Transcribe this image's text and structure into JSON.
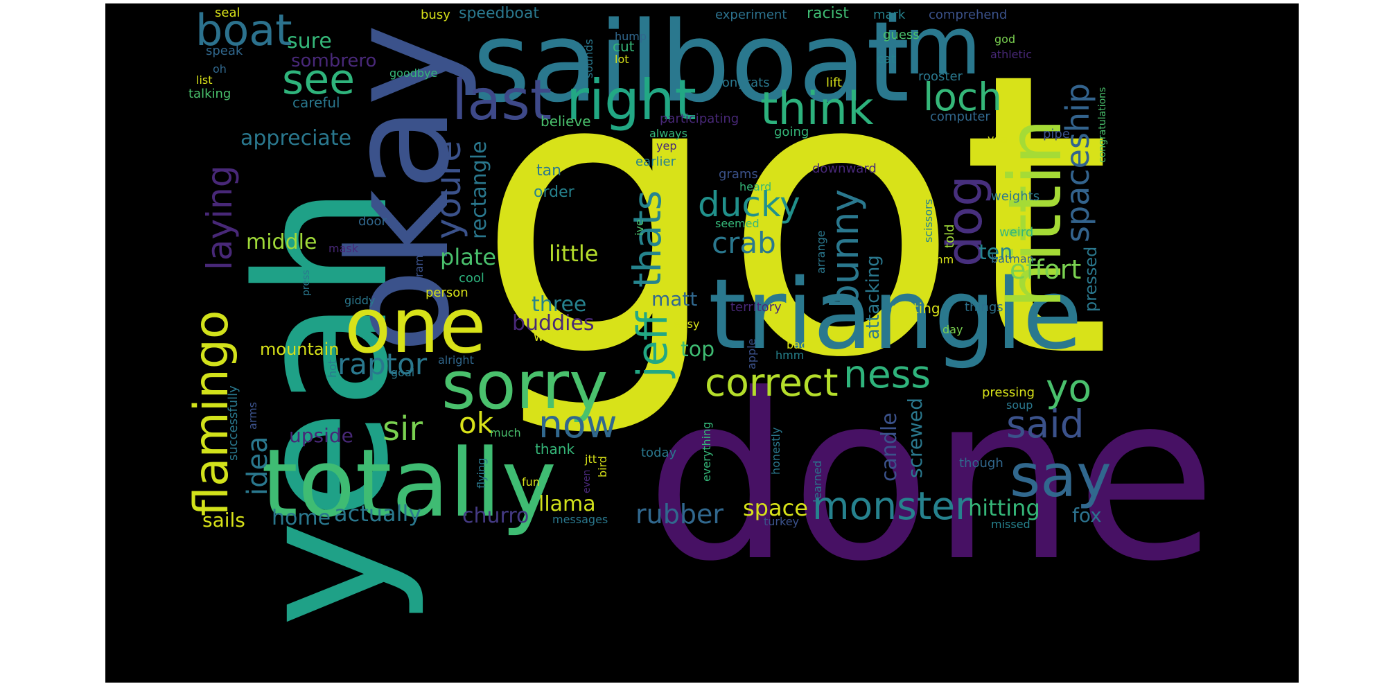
{
  "words": [
    {
      "text": "got",
      "color": "#d8e219"
    },
    {
      "text": "done",
      "color": "#471164"
    },
    {
      "text": "yeah",
      "color": "#1fa187"
    },
    {
      "text": "okay",
      "color": "#3b528b"
    },
    {
      "text": "sailboat",
      "color": "#2a788e"
    },
    {
      "text": "triangle",
      "color": "#2a788e"
    },
    {
      "text": "totally",
      "color": "#3fbc73"
    },
    {
      "text": "hittin",
      "color": "#a5db36"
    },
    {
      "text": "im",
      "color": "#2a788e"
    },
    {
      "text": "one",
      "color": "#d8e219"
    },
    {
      "text": "sorry",
      "color": "#4ac16d"
    },
    {
      "text": "say",
      "color": "#31688e"
    },
    {
      "text": "flamingo",
      "color": "#d2e21b"
    },
    {
      "text": "last",
      "color": "#3e4989"
    },
    {
      "text": "right",
      "color": "#22a884"
    },
    {
      "text": "boat",
      "color": "#2c728e"
    },
    {
      "text": "dog",
      "color": "#472f7d"
    },
    {
      "text": "think",
      "color": "#2db27d"
    },
    {
      "text": "see",
      "color": "#2fb47c"
    },
    {
      "text": "loch",
      "color": "#35b779"
    },
    {
      "text": "spaceship",
      "color": "#33638d"
    },
    {
      "text": "laying",
      "color": "#482878"
    },
    {
      "text": "youre",
      "color": "#3b528b"
    },
    {
      "text": "thats",
      "color": "#25848e"
    },
    {
      "text": "ducky",
      "color": "#21918c"
    },
    {
      "text": "bunny",
      "color": "#2a788e"
    },
    {
      "text": "jeff",
      "color": "#22a884"
    },
    {
      "text": "correct",
      "color": "#b5de2b"
    },
    {
      "text": "ness",
      "color": "#2fb47c"
    },
    {
      "text": "yo",
      "color": "#4ac16d"
    },
    {
      "text": "said",
      "color": "#3b528b"
    },
    {
      "text": "now",
      "color": "#31688e"
    },
    {
      "text": "monster",
      "color": "#26828e"
    },
    {
      "text": "raptor",
      "color": "#2a788e"
    },
    {
      "text": "sir",
      "color": "#7ad151"
    },
    {
      "text": "ok",
      "color": "#d8e219"
    },
    {
      "text": "crab",
      "color": "#2a788e"
    },
    {
      "text": "effort",
      "color": "#7ad151"
    },
    {
      "text": "idea",
      "color": "#2a788e"
    },
    {
      "text": "rubber",
      "color": "#31688e"
    },
    {
      "text": "llama",
      "color": "#d2e21b"
    },
    {
      "text": "space",
      "color": "#d8e219"
    },
    {
      "text": "hitting",
      "color": "#35b779"
    },
    {
      "text": "fox",
      "color": "#2c728e"
    },
    {
      "text": "sails",
      "color": "#d8e219"
    },
    {
      "text": "home",
      "color": "#2a788e"
    },
    {
      "text": "actually",
      "color": "#2a788e"
    },
    {
      "text": "churro",
      "color": "#443a83"
    },
    {
      "text": "appreciate",
      "color": "#2a788e"
    },
    {
      "text": "rectangle",
      "color": "#2a788e"
    },
    {
      "text": "middle",
      "color": "#a0da39"
    },
    {
      "text": "plate",
      "color": "#4ac16d"
    },
    {
      "text": "little",
      "color": "#b5de2b"
    },
    {
      "text": "three",
      "color": "#26828e"
    },
    {
      "text": "buddies",
      "color": "#482878"
    },
    {
      "text": "matt",
      "color": "#31688e"
    },
    {
      "text": "top",
      "color": "#3fbc73"
    },
    {
      "text": "upside",
      "color": "#482878"
    },
    {
      "text": "mountain",
      "color": "#d8e219"
    },
    {
      "text": "screwed",
      "color": "#2a788e"
    },
    {
      "text": "candle",
      "color": "#3b528b"
    },
    {
      "text": "attacking",
      "color": "#2a788e"
    },
    {
      "text": "ten",
      "color": "#25848e"
    },
    {
      "text": "pressed",
      "color": "#2a788e"
    },
    {
      "text": "sure",
      "color": "#35b779"
    },
    {
      "text": "sombrero",
      "color": "#482878"
    },
    {
      "text": "speedboat",
      "color": "#2a788e"
    },
    {
      "text": "seal",
      "color": "#d8e219"
    },
    {
      "text": "busy",
      "color": "#d8e219"
    },
    {
      "text": "experiment",
      "color": "#2c728e"
    },
    {
      "text": "racist",
      "color": "#3fbc73"
    },
    {
      "text": "mark",
      "color": "#26828e"
    },
    {
      "text": "comprehend",
      "color": "#3b528b"
    },
    {
      "text": "hump",
      "color": "#31688e"
    },
    {
      "text": "guess",
      "color": "#4ac16d"
    },
    {
      "text": "god",
      "color": "#7ad151"
    },
    {
      "text": "athletic",
      "color": "#482878"
    },
    {
      "text": "cat",
      "color": "#26828e"
    },
    {
      "text": "cut",
      "color": "#35b779"
    },
    {
      "text": "lot",
      "color": "#d8e219"
    },
    {
      "text": "speak",
      "color": "#31688e"
    },
    {
      "text": "oh",
      "color": "#31688e"
    },
    {
      "text": "list",
      "color": "#d8e219"
    },
    {
      "text": "talking",
      "color": "#4ac16d"
    },
    {
      "text": "careful",
      "color": "#2a788e"
    },
    {
      "text": "goodbye",
      "color": "#35b779"
    },
    {
      "text": "sounds",
      "color": "#2a788e"
    },
    {
      "text": "rooster",
      "color": "#2a788e"
    },
    {
      "text": "congrats",
      "color": "#2a788e"
    },
    {
      "text": "lift",
      "color": "#d8e219"
    },
    {
      "text": "participating",
      "color": "#482878"
    },
    {
      "text": "computer",
      "color": "#31688e"
    },
    {
      "text": "believe",
      "color": "#4ac16d"
    },
    {
      "text": "always",
      "color": "#35b779"
    },
    {
      "text": "going",
      "color": "#35b779"
    },
    {
      "text": "yep",
      "color": "#482878"
    },
    {
      "text": "yea",
      "color": "#d8e219"
    },
    {
      "text": "pipe",
      "color": "#3b528b"
    },
    {
      "text": "congratulations",
      "color": "#4ac16d"
    },
    {
      "text": "earlier",
      "color": "#26828e"
    },
    {
      "text": "tan",
      "color": "#2a788e"
    },
    {
      "text": "order",
      "color": "#26828e"
    },
    {
      "text": "grams",
      "color": "#3b528b"
    },
    {
      "text": "heard",
      "color": "#35b779"
    },
    {
      "text": "downward",
      "color": "#482878"
    },
    {
      "text": "weights",
      "color": "#2a788e"
    },
    {
      "text": "seemed",
      "color": "#35b779"
    },
    {
      "text": "door",
      "color": "#31688e"
    },
    {
      "text": "ive",
      "color": "#4ac16d"
    },
    {
      "text": "scissors",
      "color": "#26828e"
    },
    {
      "text": "told",
      "color": "#a0da39"
    },
    {
      "text": "weird",
      "color": "#35b779"
    },
    {
      "text": "mask",
      "color": "#482878"
    },
    {
      "text": "ram",
      "color": "#3b528b"
    },
    {
      "text": "arrange",
      "color": "#2a788e"
    },
    {
      "text": "mm",
      "color": "#d8e219"
    },
    {
      "text": "batman",
      "color": "#31688e"
    },
    {
      "text": "cool",
      "color": "#2db27d"
    },
    {
      "text": "press",
      "color": "#2a788e"
    },
    {
      "text": "person",
      "color": "#d8e219"
    },
    {
      "text": "giddy",
      "color": "#2a788e"
    },
    {
      "text": "territory",
      "color": "#482878"
    },
    {
      "text": "getting",
      "color": "#d8e219"
    },
    {
      "text": "things",
      "color": "#2c728e"
    },
    {
      "text": "easy",
      "color": "#d8e219"
    },
    {
      "text": "day",
      "color": "#7ad151"
    },
    {
      "text": "well",
      "color": "#d8e219"
    },
    {
      "text": "apple",
      "color": "#3b528b"
    },
    {
      "text": "back",
      "color": "#d8e219"
    },
    {
      "text": "hmm",
      "color": "#26828e"
    },
    {
      "text": "alright",
      "color": "#31688e"
    },
    {
      "text": "hot",
      "color": "#2a788e"
    },
    {
      "text": "goal",
      "color": "#2a788e"
    },
    {
      "text": "successfully",
      "color": "#2a788e"
    },
    {
      "text": "arms",
      "color": "#3b528b"
    },
    {
      "text": "much",
      "color": "#4ac16d"
    },
    {
      "text": "pressing",
      "color": "#d8e219"
    },
    {
      "text": "soup",
      "color": "#2a788e"
    },
    {
      "text": "thank",
      "color": "#35b779"
    },
    {
      "text": "flying",
      "color": "#2a788e"
    },
    {
      "text": "jtt",
      "color": "#d8e219"
    },
    {
      "text": "bird",
      "color": "#d8e219"
    },
    {
      "text": "today",
      "color": "#2a788e"
    },
    {
      "text": "everything",
      "color": "#35b779"
    },
    {
      "text": "honestly",
      "color": "#2a788e"
    },
    {
      "text": "though",
      "color": "#31688e"
    },
    {
      "text": "fun",
      "color": "#d8e219"
    },
    {
      "text": "even",
      "color": "#482878"
    },
    {
      "text": "learned",
      "color": "#2a788e"
    },
    {
      "text": "messages",
      "color": "#2a788e"
    },
    {
      "text": "turkey",
      "color": "#3b528b"
    },
    {
      "text": "missed",
      "color": "#26828e"
    }
  ]
}
